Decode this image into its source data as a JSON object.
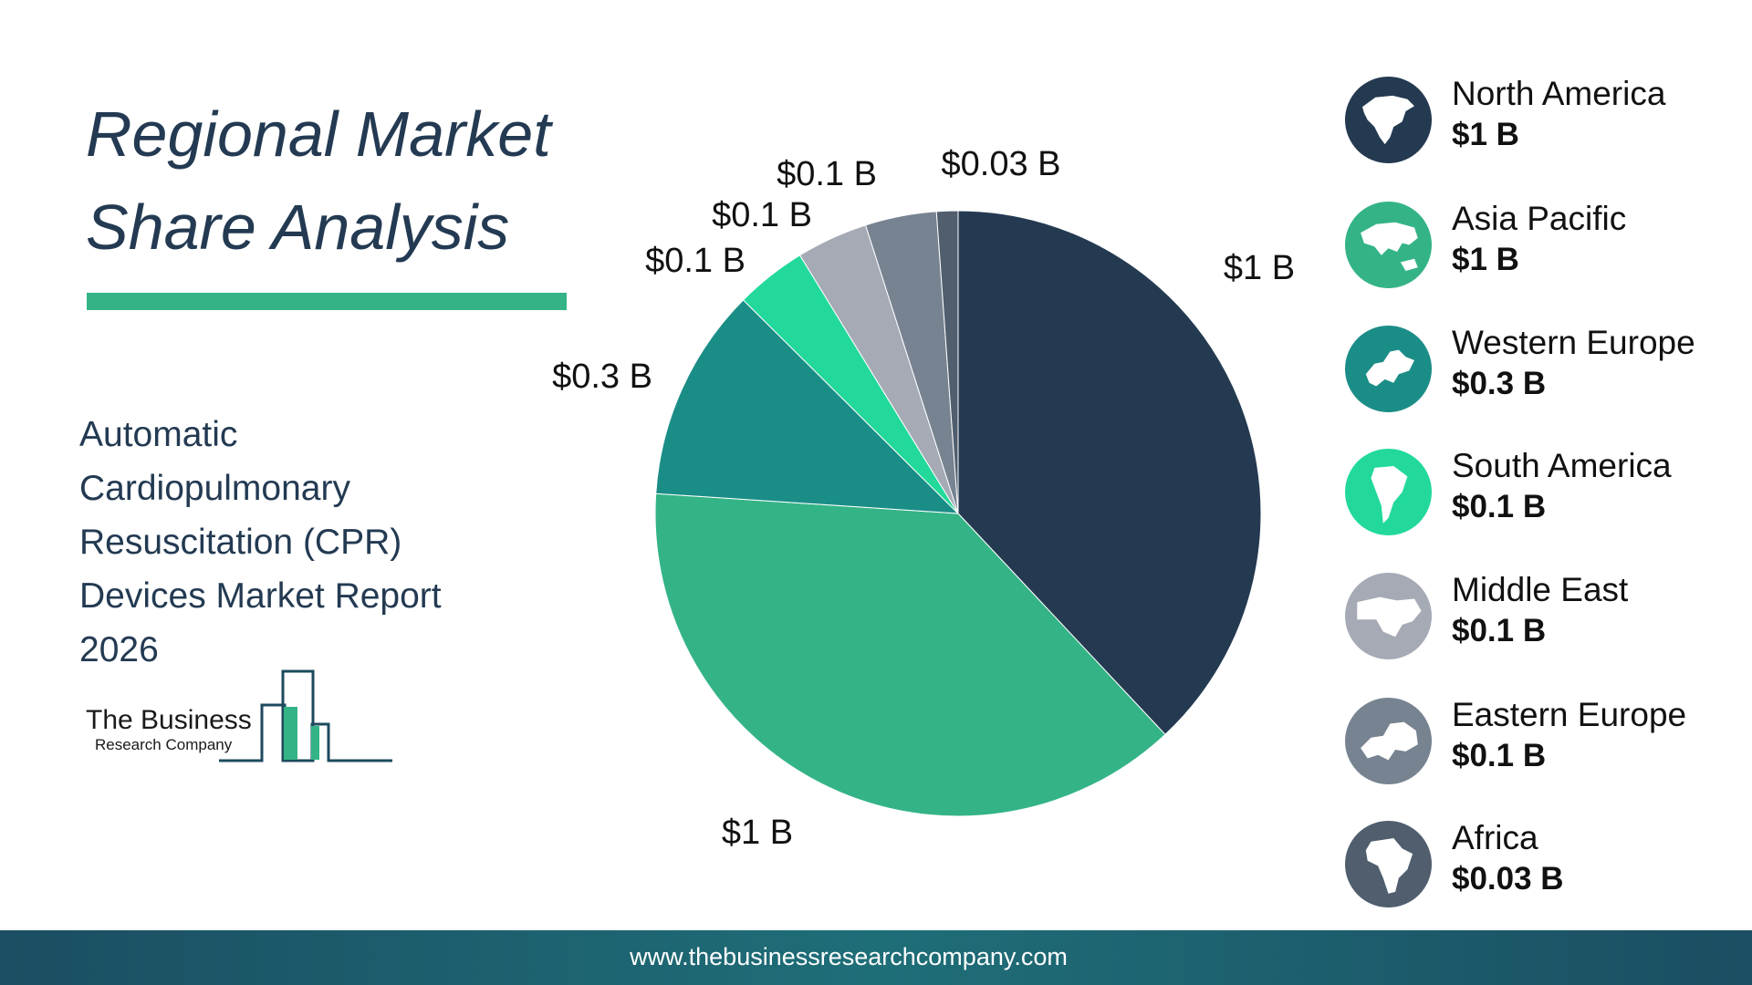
{
  "title": {
    "line1": "Regional Market",
    "line2": "Share Analysis"
  },
  "subtitle": {
    "line1": "Automatic",
    "line2": "Cardiopulmonary",
    "line3": "Resuscitation (CPR)",
    "line4": "Devices Market Report",
    "line5": "2026"
  },
  "logo": {
    "name": "The Business",
    "sub": "Research Company"
  },
  "chart_data": {
    "type": "pie",
    "slices": [
      {
        "name": "North America",
        "value": 1,
        "label": "$1 B",
        "color": "#243a51"
      },
      {
        "name": "Asia Pacific",
        "value": 1,
        "label": "$1 B",
        "color": "#34b486"
      },
      {
        "name": "Western Europe",
        "value": 0.3,
        "label": "$0.3 B",
        "color": "#1b8d87"
      },
      {
        "name": "South America",
        "value": 0.1,
        "label": "$0.1 B",
        "color": "#22d99b"
      },
      {
        "name": "Middle East",
        "value": 0.1,
        "label": "$0.1 B",
        "color": "#a6aab5"
      },
      {
        "name": "Eastern Europe",
        "value": 0.1,
        "label": "$0.1 B",
        "color": "#778390"
      },
      {
        "name": "Africa",
        "value": 0.03,
        "label": "$0.03 B",
        "color": "#505e6e"
      }
    ]
  },
  "legend": {
    "items": [
      {
        "name": "North America",
        "value": "$1 B",
        "color": "#243a51",
        "icon": "north-america-map-icon"
      },
      {
        "name": "Asia Pacific",
        "value": "$1 B",
        "color": "#34b486",
        "icon": "asia-pacific-map-icon"
      },
      {
        "name": "Western Europe",
        "value": "$0.3 B",
        "color": "#1b8d87",
        "icon": "western-europe-map-icon"
      },
      {
        "name": "South America",
        "value": "$0.1 B",
        "color": "#22d99b",
        "icon": "south-america-map-icon"
      },
      {
        "name": "Middle East",
        "value": "$0.1 B",
        "color": "#a6aab5",
        "icon": "middle-east-map-icon"
      },
      {
        "name": "Eastern Europe",
        "value": "$0.1 B",
        "color": "#778390",
        "icon": "eastern-europe-map-icon"
      },
      {
        "name": "Africa",
        "value": "$0.03 B",
        "color": "#505e6e",
        "icon": "africa-map-icon"
      }
    ]
  },
  "footer": {
    "url": "www.thebusinessresearchcompany.com"
  }
}
